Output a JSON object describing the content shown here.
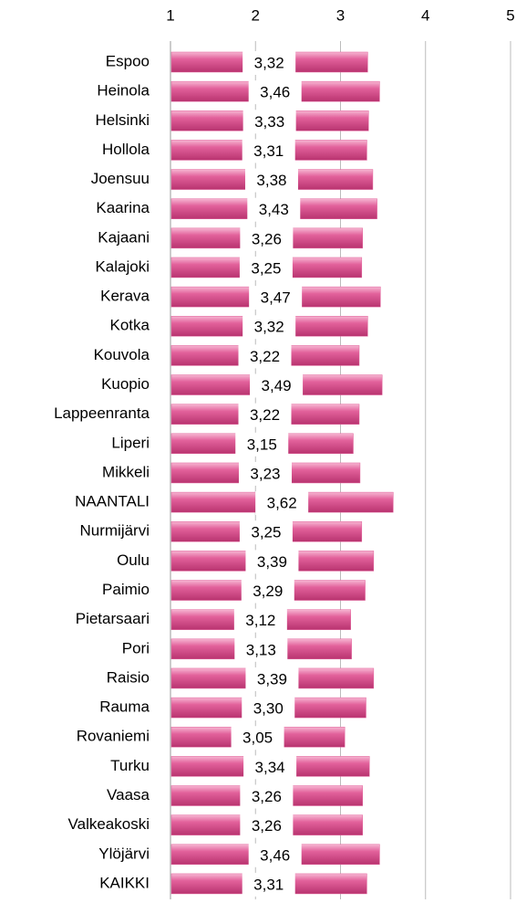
{
  "chart_data": {
    "type": "bar",
    "orientation": "horizontal",
    "categories": [
      "Espoo",
      "Heinola",
      "Helsinki",
      "Hollola",
      "Joensuu",
      "Kaarina",
      "Kajaani",
      "Kalajoki",
      "Kerava",
      "Kotka",
      "Kouvola",
      "Kuopio",
      "Lappeenranta",
      "Liperi",
      "Mikkeli",
      "NAANTALI",
      "Nurmijärvi",
      "Oulu",
      "Paimio",
      "Pietarsaari",
      "Pori",
      "Raisio",
      "Rauma",
      "Rovaniemi",
      "Turku",
      "Vaasa",
      "Valkeakoski",
      "Ylöjärvi",
      "KAIKKI"
    ],
    "values": [
      3.32,
      3.46,
      3.33,
      3.31,
      3.38,
      3.43,
      3.26,
      3.25,
      3.47,
      3.32,
      3.22,
      3.49,
      3.22,
      3.15,
      3.23,
      3.62,
      3.25,
      3.39,
      3.29,
      3.12,
      3.13,
      3.39,
      3.3,
      3.05,
      3.34,
      3.26,
      3.26,
      3.46,
      3.31
    ],
    "value_labels": [
      "3,32",
      "3,46",
      "3,33",
      "3,31",
      "3,38",
      "3,43",
      "3,26",
      "3,25",
      "3,47",
      "3,32",
      "3,22",
      "3,49",
      "3,22",
      "3,15",
      "3,23",
      "3,62",
      "3,25",
      "3,39",
      "3,29",
      "3,12",
      "3,13",
      "3,39",
      "3,30",
      "3,05",
      "3,34",
      "3,26",
      "3,26",
      "3,46",
      "3,31"
    ],
    "color": "#e2619b",
    "xlim": [
      1,
      5
    ],
    "xticks": [
      1,
      2,
      3,
      4,
      5
    ],
    "grid": true
  }
}
